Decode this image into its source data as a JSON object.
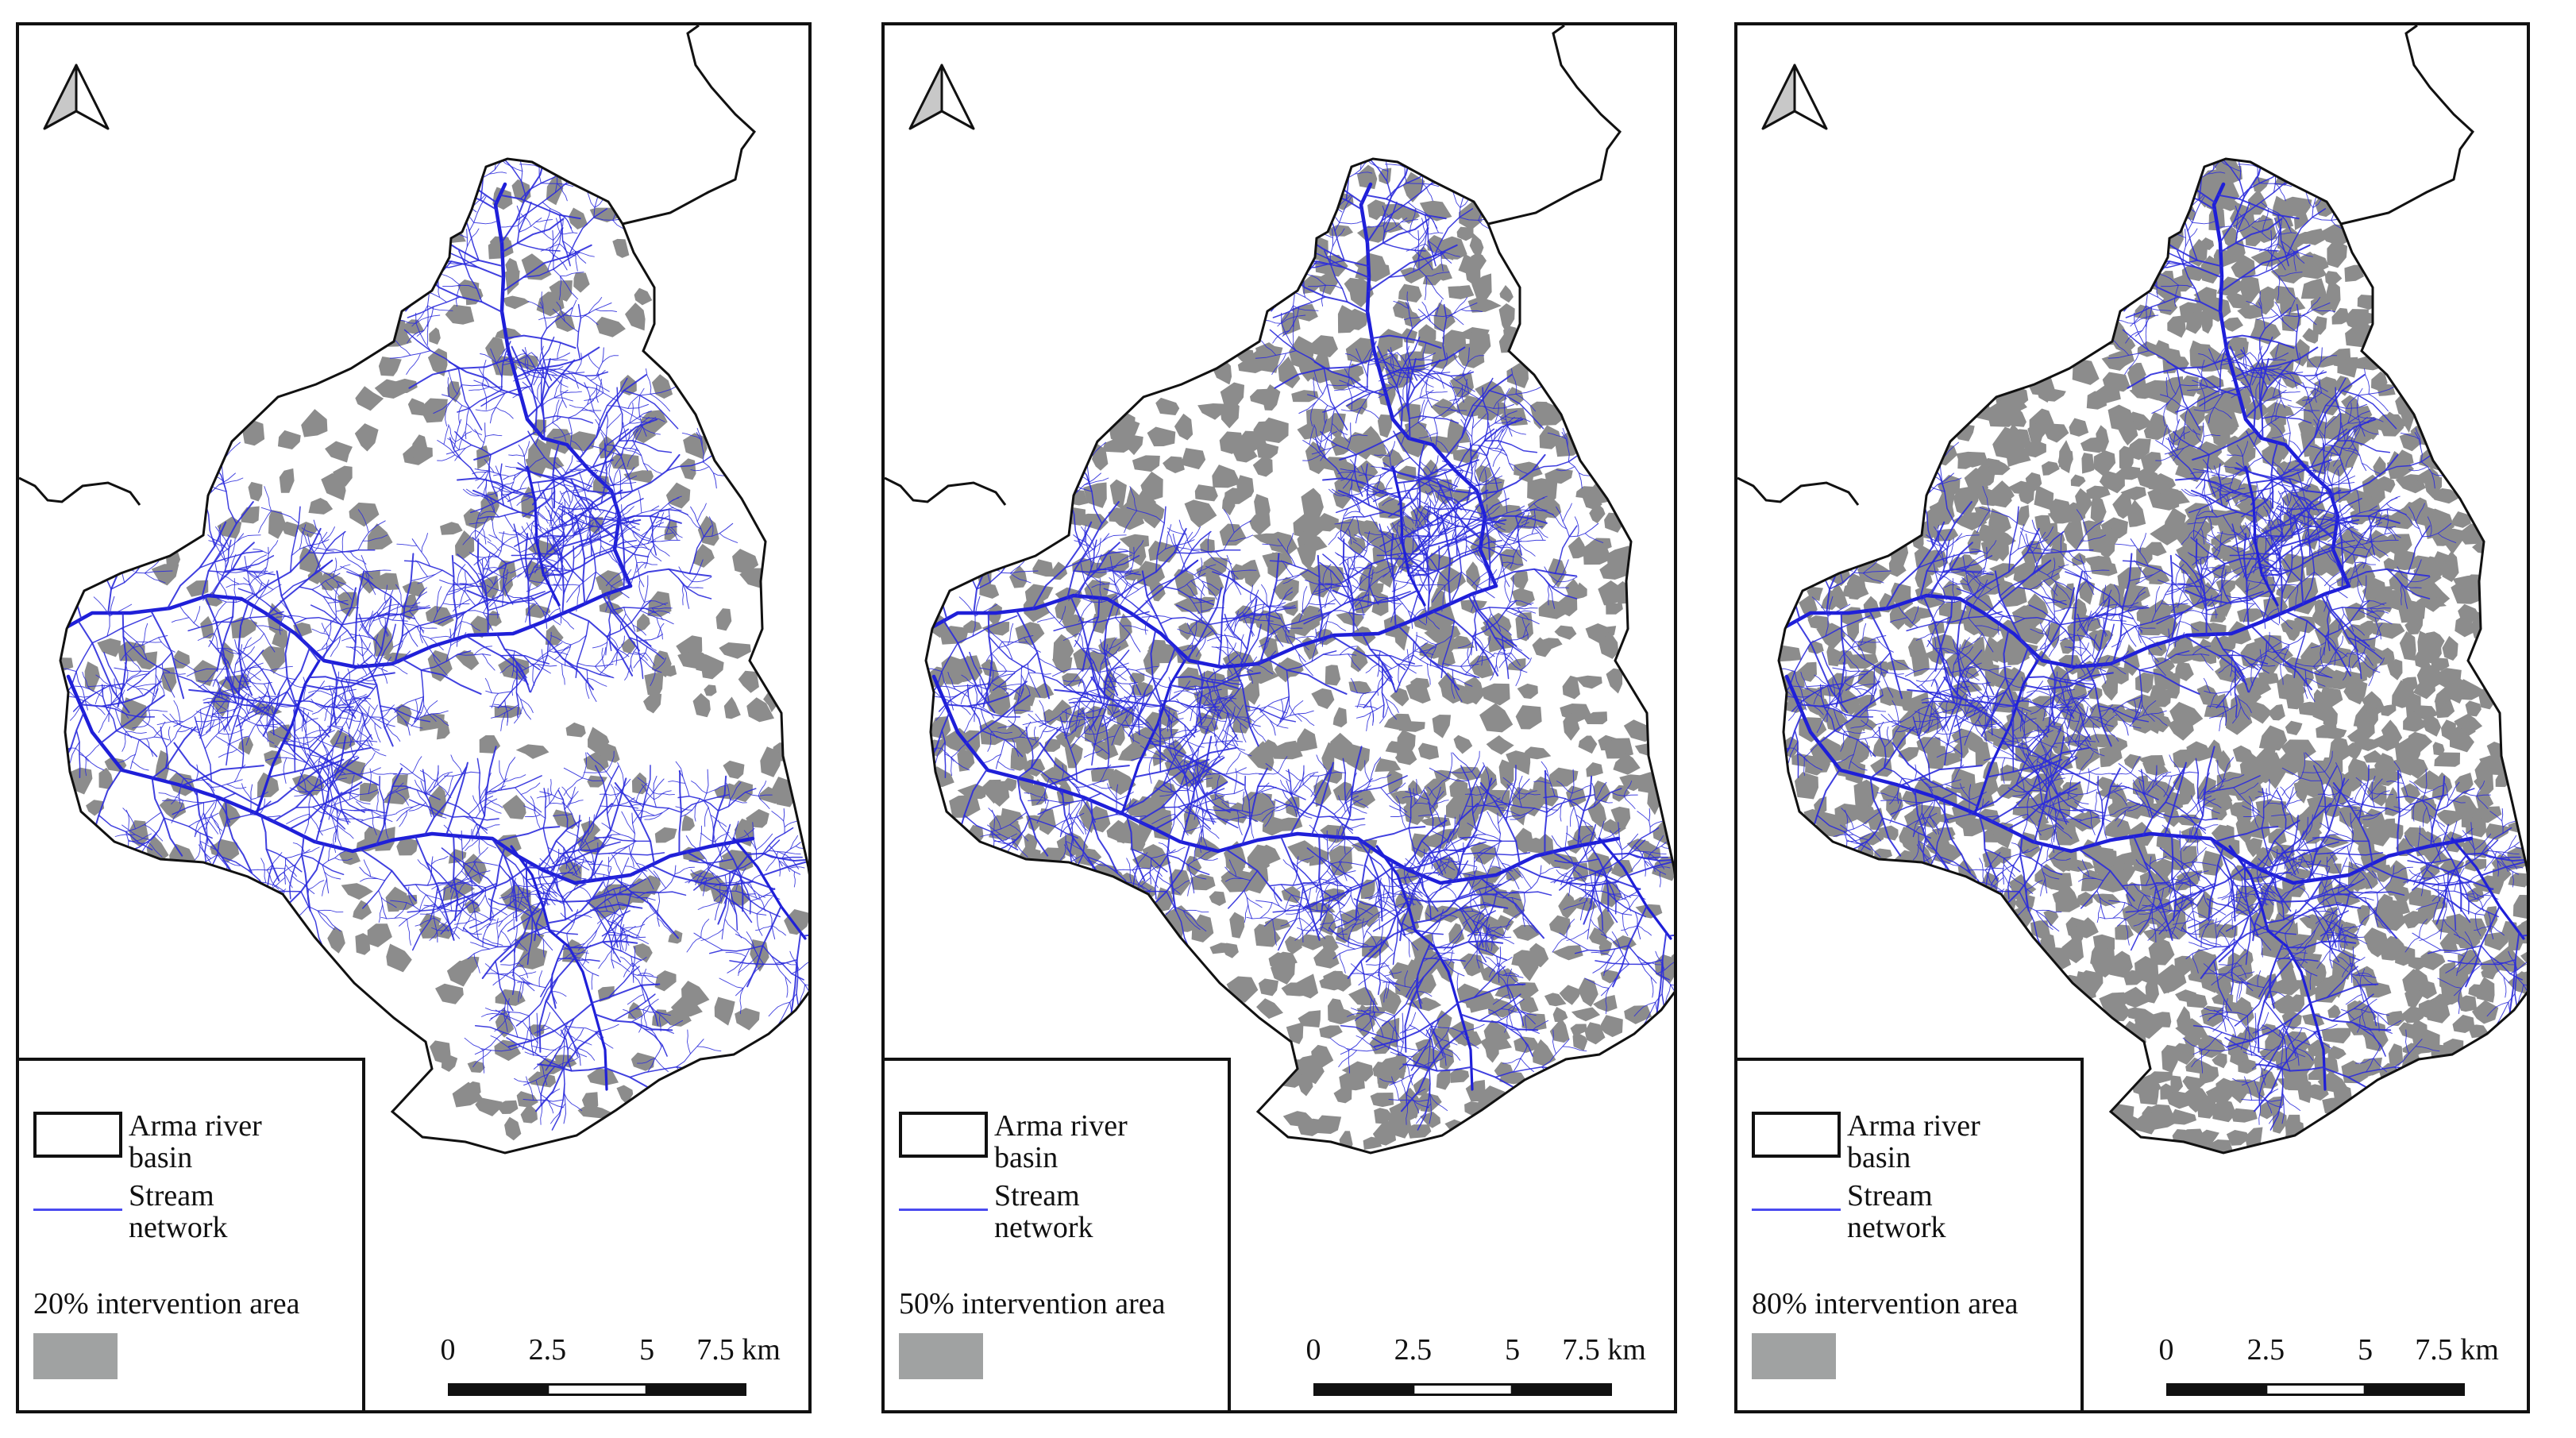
{
  "panels": [
    {
      "intervention_label": "20% intervention area",
      "coverage_fraction": 0.2
    },
    {
      "intervention_label": "50% intervention area",
      "coverage_fraction": 0.5
    },
    {
      "intervention_label": "80% intervention area",
      "coverage_fraction": 0.8
    }
  ],
  "legend": {
    "basin_label_line1": "Arma river",
    "basin_label_line2": "basin",
    "stream_label_line1": "Stream",
    "stream_label_line2": "network"
  },
  "scale": {
    "ticks": [
      "0",
      "2.5",
      "5",
      "7.5 km"
    ]
  },
  "north_arrow": "north-arrow-icon",
  "colors": {
    "basin_outline": "#111111",
    "stream": "#2b2bdc",
    "intervention": "#8c8c8c",
    "legend_patch": "#a0a2a2"
  }
}
